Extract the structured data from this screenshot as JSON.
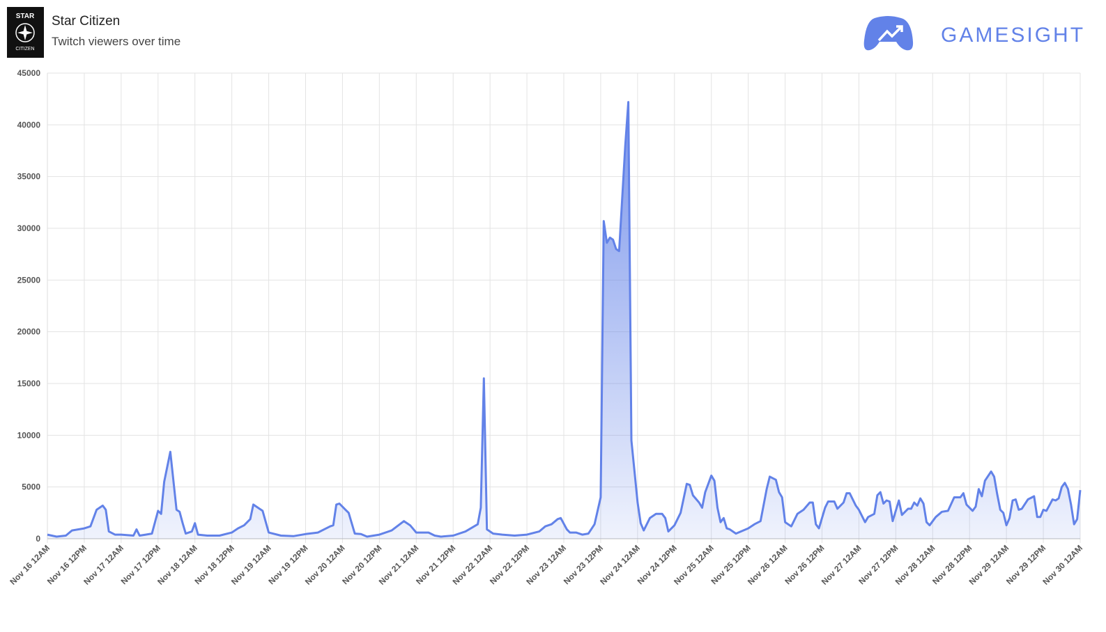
{
  "header": {
    "logo_top": "STAR",
    "logo_bottom": "CITIZEN",
    "brand": "GAMESIGHT"
  },
  "chart_data": {
    "type": "line",
    "title": "Star Citizen",
    "subtitle": "Twitch viewers over time",
    "color": "#6282e8",
    "grid": true,
    "fill": true,
    "xlim": [
      0,
      336
    ],
    "ylim": [
      0,
      45000
    ],
    "yticks": [
      0,
      5000,
      10000,
      15000,
      20000,
      25000,
      30000,
      35000,
      40000,
      45000
    ],
    "xticks": [
      {
        "value": 0,
        "label": "Nov 16 12AM"
      },
      {
        "value": 12,
        "label": "Nov 16 12PM"
      },
      {
        "value": 24,
        "label": "Nov 17 12AM"
      },
      {
        "value": 36,
        "label": "Nov 17 12PM"
      },
      {
        "value": 48,
        "label": "Nov 18 12AM"
      },
      {
        "value": 60,
        "label": "Nov 18 12PM"
      },
      {
        "value": 72,
        "label": "Nov 19 12AM"
      },
      {
        "value": 84,
        "label": "Nov 19 12PM"
      },
      {
        "value": 96,
        "label": "Nov 20 12AM"
      },
      {
        "value": 108,
        "label": "Nov 20 12PM"
      },
      {
        "value": 120,
        "label": "Nov 21 12AM"
      },
      {
        "value": 132,
        "label": "Nov 21 12PM"
      },
      {
        "value": 144,
        "label": "Nov 22 12AM"
      },
      {
        "value": 156,
        "label": "Nov 22 12PM"
      },
      {
        "value": 168,
        "label": "Nov 23 12AM"
      },
      {
        "value": 180,
        "label": "Nov 23 12PM"
      },
      {
        "value": 192,
        "label": "Nov 24 12AM"
      },
      {
        "value": 204,
        "label": "Nov 24 12PM"
      },
      {
        "value": 216,
        "label": "Nov 25 12AM"
      },
      {
        "value": 228,
        "label": "Nov 25 12PM"
      },
      {
        "value": 240,
        "label": "Nov 26 12AM"
      },
      {
        "value": 252,
        "label": "Nov 26 12PM"
      },
      {
        "value": 264,
        "label": "Nov 27 12AM"
      },
      {
        "value": 276,
        "label": "Nov 27 12PM"
      },
      {
        "value": 288,
        "label": "Nov 28 12AM"
      },
      {
        "value": 300,
        "label": "Nov 28 12PM"
      },
      {
        "value": 312,
        "label": "Nov 29 12AM"
      },
      {
        "value": 324,
        "label": "Nov 29 12PM"
      },
      {
        "value": 336,
        "label": "Nov 30 12AM"
      }
    ],
    "x": [
      0,
      3,
      6,
      8,
      12,
      14,
      16,
      18,
      19,
      20,
      22,
      24,
      28,
      29,
      30,
      32,
      34,
      36,
      37,
      38,
      40,
      42,
      43,
      44,
      45,
      47,
      48,
      49,
      52,
      56,
      60,
      62,
      64,
      66,
      67,
      69,
      70,
      72,
      76,
      80,
      84,
      88,
      92,
      93,
      94,
      95,
      97,
      98,
      100,
      102,
      104,
      108,
      112,
      116,
      118,
      120,
      124,
      126,
      128,
      132,
      136,
      140,
      141,
      142,
      143,
      145,
      148,
      152,
      156,
      160,
      162,
      164,
      166,
      167,
      169,
      170,
      172,
      174,
      176,
      178,
      180,
      181,
      182,
      183,
      184,
      185,
      186,
      188,
      189,
      190,
      192,
      193,
      194,
      196,
      198,
      200,
      201,
      202,
      204,
      206,
      208,
      209,
      210,
      212,
      213,
      214,
      216,
      217,
      218,
      219,
      220,
      221,
      222,
      224,
      228,
      230,
      232,
      234,
      235,
      237,
      238,
      239,
      240,
      242,
      244,
      246,
      248,
      249,
      250,
      251,
      253,
      254,
      256,
      257,
      259,
      260,
      261,
      263,
      264,
      266,
      267,
      269,
      270,
      271,
      272,
      273,
      274,
      275,
      277,
      278,
      280,
      281,
      282,
      283,
      284,
      285,
      286,
      287,
      289,
      291,
      293,
      295,
      297,
      298,
      299,
      301,
      302,
      303,
      304,
      305,
      307,
      308,
      309,
      310,
      311,
      312,
      313,
      314,
      315,
      316,
      317,
      319,
      321,
      322,
      323,
      324,
      325,
      327,
      328,
      329,
      330,
      331,
      332,
      333,
      334,
      335,
      336
    ],
    "values": [
      400,
      200,
      300,
      800,
      1000,
      1200,
      2800,
      3200,
      2800,
      700,
      400,
      400,
      300,
      900,
      300,
      400,
      500,
      2700,
      2400,
      5500,
      8400,
      2800,
      2600,
      1500,
      500,
      700,
      1500,
      400,
      300,
      300,
      600,
      1000,
      1300,
      1900,
      3300,
      2900,
      2700,
      600,
      300,
      250,
      450,
      600,
      1200,
      1300,
      3300,
      3400,
      2800,
      2500,
      500,
      450,
      200,
      400,
      800,
      1700,
      1300,
      600,
      600,
      300,
      200,
      300,
      700,
      1400,
      3000,
      15500,
      900,
      500,
      400,
      300,
      400,
      700,
      1200,
      1400,
      1900,
      2000,
      900,
      600,
      600,
      400,
      500,
      1400,
      4000,
      30700,
      28600,
      29100,
      28900,
      28000,
      27800,
      38000,
      42200,
      9500,
      3500,
      1500,
      800,
      2000,
      2400,
      2400,
      2000,
      700,
      1300,
      2500,
      5300,
      5200,
      4200,
      3500,
      3000,
      4500,
      6100,
      5600,
      3000,
      1600,
      2000,
      1000,
      900,
      500,
      1000,
      1400,
      1700,
      4800,
      6000,
      5700,
      4500,
      4000,
      1600,
      1200,
      2400,
      2800,
      3500,
      3500,
      1400,
      1000,
      3000,
      3600,
      3600,
      2900,
      3500,
      4400,
      4400,
      3200,
      2800,
      1600,
      2100,
      2400,
      4200,
      4500,
      3400,
      3700,
      3600,
      1700,
      3700,
      2300,
      2900,
      2900,
      3500,
      3200,
      3900,
      3400,
      1600,
      1300,
      2100,
      2600,
      2700,
      4000,
      4000,
      4400,
      3300,
      2700,
      3100,
      4800,
      4100,
      5600,
      6500,
      6000,
      4300,
      2800,
      2500,
      1300,
      2000,
      3700,
      3800,
      2800,
      2900,
      3800,
      4100,
      2100,
      2100,
      2800,
      2700,
      3800,
      3700,
      3900,
      5000,
      5400,
      4800,
      3300,
      1400,
      1900,
      4700
    ]
  }
}
